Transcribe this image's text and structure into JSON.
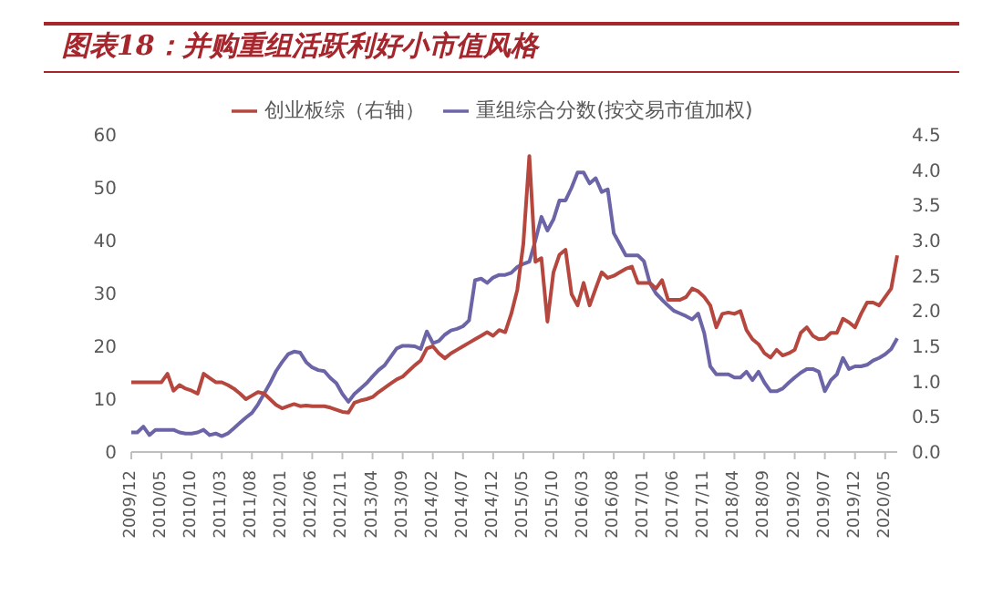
{
  "chart_data": {
    "type": "line",
    "title": "图表18：并购重组活跃利好小市值风格",
    "categories": [
      "2009/12",
      null,
      null,
      null,
      null,
      "2010/05",
      null,
      null,
      null,
      null,
      "2010/10",
      null,
      null,
      null,
      null,
      "2011/03",
      null,
      null,
      null,
      null,
      "2011/08",
      null,
      null,
      null,
      null,
      "2012/01",
      null,
      null,
      null,
      null,
      "2012/06",
      null,
      null,
      null,
      null,
      "2012/11",
      null,
      null,
      null,
      null,
      "2013/04",
      null,
      null,
      null,
      null,
      "2013/09",
      null,
      null,
      null,
      null,
      "2014/02",
      null,
      null,
      null,
      null,
      "2014/07",
      null,
      null,
      null,
      null,
      "2014/12",
      null,
      null,
      null,
      null,
      "2015/05",
      null,
      null,
      null,
      null,
      "2015/10",
      null,
      null,
      null,
      null,
      "2016/03",
      null,
      null,
      null,
      null,
      "2016/08",
      null,
      null,
      null,
      null,
      "2017/01",
      null,
      null,
      null,
      null,
      "2017/06",
      null,
      null,
      null,
      null,
      "2017/11",
      null,
      null,
      null,
      null,
      "2018/04",
      null,
      null,
      null,
      null,
      "2018/09",
      null,
      null,
      null,
      null,
      "2019/02",
      null,
      null,
      null,
      null,
      "2019/07",
      null,
      null,
      null,
      null,
      "2019/12",
      null,
      null,
      null,
      null,
      "2020/05",
      null,
      null
    ],
    "series": [
      {
        "name": "重组综合分数(按交易市值加权)",
        "color": "#6b65a8",
        "values": [
          3.7,
          3.7,
          4.8,
          3.2,
          4.2,
          4.2,
          4.2,
          4.2,
          3.7,
          3.5,
          3.5,
          3.7,
          4.2,
          3.2,
          3.5,
          3,
          3.5,
          4.5,
          5.5,
          6.5,
          7.4,
          9,
          11,
          13,
          15.3,
          17,
          18.5,
          19,
          18.8,
          17,
          16,
          15.5,
          15.3,
          14,
          13,
          11,
          9.5,
          11,
          12,
          13,
          14.3,
          15.5,
          16.4,
          18,
          19.6,
          20.1,
          20.1,
          20,
          19.5,
          22.8,
          20.6,
          21,
          22.2,
          23,
          23.3,
          23.8,
          24.9,
          32.5,
          32.8,
          32,
          33,
          33.5,
          33.5,
          33.9,
          35,
          35.6,
          36,
          40,
          44.5,
          41.9,
          44,
          47.6,
          47.6,
          50,
          52.9,
          52.9,
          50.8,
          51.8,
          49.2,
          49.7,
          41.4,
          39.3,
          37.2,
          37.2,
          37.2,
          36.1,
          31.9,
          30,
          28.8,
          27.7,
          26.7,
          26.2,
          25.7,
          25.1,
          26.2,
          22.5,
          16.2,
          14.7,
          14.7,
          14.7,
          14.1,
          14.1,
          15.2,
          13.6,
          15.2,
          13.1,
          11.5,
          11.5,
          12,
          13.1,
          14.1,
          15,
          15.7,
          15.7,
          15.2,
          11.5,
          13.6,
          14.7,
          17.8,
          15.7,
          16.2,
          16.2,
          16.5,
          17.3,
          17.8,
          18.5,
          19.5,
          21.5
        ]
      },
      {
        "name": "创业板综（右轴）",
        "color": "#b5473f",
        "axis": "y2",
        "values": [
          0.99,
          0.99,
          0.99,
          0.99,
          0.99,
          0.99,
          1.11,
          0.87,
          0.95,
          0.9,
          0.87,
          0.83,
          1.11,
          1.05,
          0.99,
          0.99,
          0.95,
          0.9,
          0.83,
          0.75,
          0.8,
          0.85,
          0.83,
          0.75,
          0.67,
          0.62,
          0.65,
          0.68,
          0.65,
          0.66,
          0.65,
          0.65,
          0.65,
          0.63,
          0.6,
          0.57,
          0.56,
          0.7,
          0.73,
          0.75,
          0.78,
          0.85,
          0.91,
          0.97,
          1.03,
          1.07,
          1.15,
          1.23,
          1.3,
          1.47,
          1.5,
          1.4,
          1.33,
          1.4,
          1.45,
          1.5,
          1.55,
          1.6,
          1.65,
          1.7,
          1.65,
          1.73,
          1.7,
          1.96,
          2.3,
          2.95,
          4.2,
          2.7,
          2.75,
          1.85,
          2.55,
          2.8,
          2.87,
          2.24,
          2.08,
          2.4,
          2.08,
          2.32,
          2.55,
          2.47,
          2.5,
          2.55,
          2.6,
          2.63,
          2.4,
          2.4,
          2.4,
          2.32,
          2.44,
          2.16,
          2.16,
          2.16,
          2.2,
          2.32,
          2.28,
          2.2,
          2.08,
          1.77,
          1.96,
          1.98,
          1.96,
          2.0,
          1.73,
          1.6,
          1.53,
          1.4,
          1.34,
          1.45,
          1.37,
          1.4,
          1.45,
          1.69,
          1.77,
          1.65,
          1.6,
          1.61,
          1.69,
          1.69,
          1.89,
          1.84,
          1.77,
          1.96,
          2.12,
          2.12,
          2.08,
          2.2,
          2.32,
          2.79
        ]
      }
    ],
    "ylim": [
      0,
      60
    ],
    "yticks": [
      0,
      10,
      20,
      30,
      40,
      50,
      60
    ],
    "y2lim": [
      0,
      4.5
    ],
    "y2ticks": [
      {
        "value": 0,
        "label": "0.0"
      },
      {
        "value": 0.5,
        "label": "0.5"
      },
      {
        "value": 1,
        "label": "1.0"
      },
      {
        "value": 1.5,
        "label": "1.5"
      },
      {
        "value": 2,
        "label": "2.0"
      },
      {
        "value": 2.5,
        "label": "2.5"
      },
      {
        "value": 3,
        "label": "3.0"
      },
      {
        "value": 3.5,
        "label": "3.5"
      },
      {
        "value": 4,
        "label": "4.0"
      },
      {
        "value": 4.5,
        "label": "4.5"
      }
    ],
    "legend": "top",
    "grid": false,
    "marker": "none",
    "line_style": "solid"
  }
}
